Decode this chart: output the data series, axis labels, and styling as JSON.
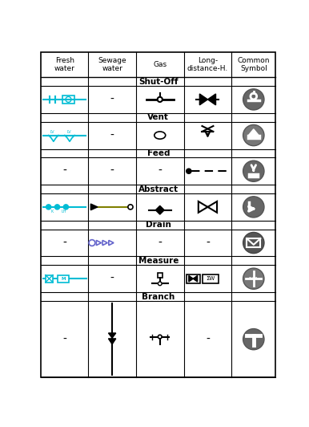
{
  "title": "",
  "headers": [
    "Fresh\nwater",
    "Sewage\nwater",
    "Gas",
    "Long-\ndistance-H.",
    "Common\nSymbol"
  ],
  "background_color": "#ffffff",
  "cyan_color": "#00bcd4",
  "dark_gray": "#555555",
  "olive": "#808000",
  "purple": "#6666cc"
}
